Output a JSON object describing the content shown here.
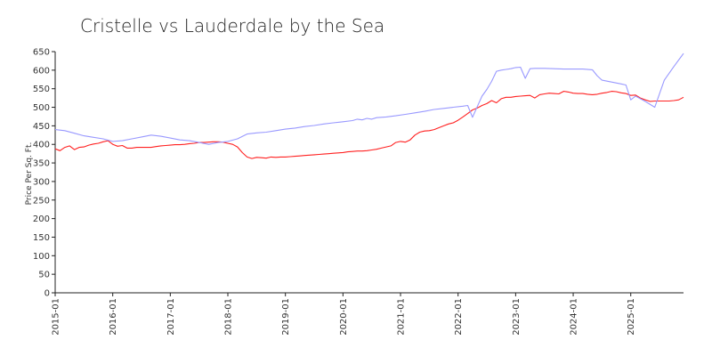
{
  "chart_data": {
    "type": "line",
    "title": "Cristelle vs Lauderdale by the Sea",
    "ylabel": "Price Per Sq. Ft.",
    "xlabel": "",
    "ylim": [
      0,
      650
    ],
    "yticks": [
      0,
      50,
      100,
      150,
      200,
      250,
      300,
      350,
      400,
      450,
      500,
      550,
      600,
      650
    ],
    "xlim": [
      "2015-01",
      "2025-12"
    ],
    "xticks": [
      "2015-01",
      "2016-01",
      "2017-01",
      "2018-01",
      "2019-01",
      "2020-01",
      "2021-01",
      "2022-01",
      "2023-01",
      "2024-01",
      "2025-01"
    ],
    "grid": false,
    "legend": "none",
    "series": [
      {
        "color": "#ff2020",
        "points": [
          [
            "2015-01",
            388
          ],
          [
            "2015-02",
            383
          ],
          [
            "2015-03",
            392
          ],
          [
            "2015-04",
            396
          ],
          [
            "2015-05",
            386
          ],
          [
            "2015-06",
            392
          ],
          [
            "2015-07",
            393
          ],
          [
            "2015-08",
            398
          ],
          [
            "2015-09",
            401
          ],
          [
            "2015-10",
            403
          ],
          [
            "2015-11",
            407
          ],
          [
            "2015-12",
            410
          ],
          [
            "2016-01",
            400
          ],
          [
            "2016-02",
            395
          ],
          [
            "2016-03",
            397
          ],
          [
            "2016-04",
            390
          ],
          [
            "2016-05",
            390
          ],
          [
            "2016-06",
            392
          ],
          [
            "2016-07",
            392
          ],
          [
            "2016-08",
            392
          ],
          [
            "2016-09",
            392
          ],
          [
            "2016-10",
            394
          ],
          [
            "2016-11",
            396
          ],
          [
            "2016-12",
            397
          ],
          [
            "2017-01",
            398
          ],
          [
            "2017-02",
            399
          ],
          [
            "2017-03",
            399
          ],
          [
            "2017-04",
            400
          ],
          [
            "2017-05",
            402
          ],
          [
            "2017-06",
            403
          ],
          [
            "2017-07",
            405
          ],
          [
            "2017-08",
            405
          ],
          [
            "2017-09",
            406
          ],
          [
            "2017-10",
            407
          ],
          [
            "2017-11",
            407
          ],
          [
            "2017-12",
            406
          ],
          [
            "2018-01",
            403
          ],
          [
            "2018-02",
            400
          ],
          [
            "2018-03",
            393
          ],
          [
            "2018-04",
            378
          ],
          [
            "2018-05",
            366
          ],
          [
            "2018-06",
            362
          ],
          [
            "2018-07",
            365
          ],
          [
            "2018-08",
            364
          ],
          [
            "2018-09",
            363
          ],
          [
            "2018-10",
            366
          ],
          [
            "2018-11",
            365
          ],
          [
            "2018-12",
            366
          ],
          [
            "2019-01",
            366
          ],
          [
            "2019-02",
            367
          ],
          [
            "2019-03",
            368
          ],
          [
            "2019-04",
            369
          ],
          [
            "2019-05",
            370
          ],
          [
            "2019-06",
            371
          ],
          [
            "2019-07",
            372
          ],
          [
            "2019-08",
            373
          ],
          [
            "2019-09",
            374
          ],
          [
            "2019-10",
            375
          ],
          [
            "2019-11",
            376
          ],
          [
            "2019-12",
            377
          ],
          [
            "2020-01",
            378
          ],
          [
            "2020-02",
            380
          ],
          [
            "2020-03",
            381
          ],
          [
            "2020-04",
            382
          ],
          [
            "2020-05",
            382
          ],
          [
            "2020-06",
            383
          ],
          [
            "2020-07",
            385
          ],
          [
            "2020-08",
            387
          ],
          [
            "2020-09",
            390
          ],
          [
            "2020-10",
            393
          ],
          [
            "2020-11",
            396
          ],
          [
            "2020-12",
            405
          ],
          [
            "2021-01",
            408
          ],
          [
            "2021-02",
            406
          ],
          [
            "2021-03",
            412
          ],
          [
            "2021-04",
            425
          ],
          [
            "2021-05",
            433
          ],
          [
            "2021-06",
            436
          ],
          [
            "2021-07",
            437
          ],
          [
            "2021-08",
            440
          ],
          [
            "2021-09",
            445
          ],
          [
            "2021-10",
            450
          ],
          [
            "2021-11",
            455
          ],
          [
            "2021-12",
            458
          ],
          [
            "2022-01",
            465
          ],
          [
            "2022-02",
            474
          ],
          [
            "2022-03",
            483
          ],
          [
            "2022-04",
            493
          ],
          [
            "2022-05",
            498
          ],
          [
            "2022-06",
            505
          ],
          [
            "2022-07",
            510
          ],
          [
            "2022-08",
            518
          ],
          [
            "2022-09",
            512
          ],
          [
            "2022-10",
            523
          ],
          [
            "2022-11",
            527
          ],
          [
            "2022-12",
            527
          ],
          [
            "2023-01",
            529
          ],
          [
            "2023-02",
            530
          ],
          [
            "2023-03",
            531
          ],
          [
            "2023-04",
            532
          ],
          [
            "2023-05",
            525
          ],
          [
            "2023-06",
            534
          ],
          [
            "2023-07",
            536
          ],
          [
            "2023-08",
            538
          ],
          [
            "2023-09",
            537
          ],
          [
            "2023-10",
            536
          ],
          [
            "2023-11",
            543
          ],
          [
            "2023-12",
            541
          ],
          [
            "2024-01",
            538
          ],
          [
            "2024-02",
            537
          ],
          [
            "2024-03",
            537
          ],
          [
            "2024-04",
            535
          ],
          [
            "2024-05",
            534
          ],
          [
            "2024-06",
            535
          ],
          [
            "2024-07",
            538
          ],
          [
            "2024-08",
            540
          ],
          [
            "2024-09",
            543
          ],
          [
            "2024-10",
            542
          ],
          [
            "2024-11",
            539
          ],
          [
            "2024-12",
            537
          ],
          [
            "2025-01",
            532
          ],
          [
            "2025-02",
            533
          ],
          [
            "2025-03",
            525
          ],
          [
            "2025-04",
            520
          ],
          [
            "2025-05",
            516
          ],
          [
            "2025-06",
            517
          ],
          [
            "2025-07",
            517
          ],
          [
            "2025-08",
            517
          ],
          [
            "2025-09",
            517
          ],
          [
            "2025-10",
            518
          ],
          [
            "2025-11",
            520
          ],
          [
            "2025-12",
            527
          ]
        ]
      },
      {
        "color": "#9999ff",
        "points": [
          [
            "2015-01",
            440
          ],
          [
            "2015-03",
            437
          ],
          [
            "2015-05",
            430
          ],
          [
            "2015-07",
            423
          ],
          [
            "2015-09",
            419
          ],
          [
            "2015-11",
            415
          ],
          [
            "2016-01",
            408
          ],
          [
            "2016-03",
            410
          ],
          [
            "2016-05",
            415
          ],
          [
            "2016-07",
            420
          ],
          [
            "2016-09",
            425
          ],
          [
            "2016-11",
            422
          ],
          [
            "2017-01",
            417
          ],
          [
            "2017-03",
            412
          ],
          [
            "2017-05",
            410
          ],
          [
            "2017-07",
            405
          ],
          [
            "2017-09",
            400
          ],
          [
            "2017-11",
            405
          ],
          [
            "2018-01",
            408
          ],
          [
            "2018-03",
            415
          ],
          [
            "2018-05",
            428
          ],
          [
            "2018-07",
            431
          ],
          [
            "2018-09",
            433
          ],
          [
            "2018-11",
            437
          ],
          [
            "2019-01",
            441
          ],
          [
            "2019-03",
            444
          ],
          [
            "2019-05",
            448
          ],
          [
            "2019-07",
            451
          ],
          [
            "2019-09",
            455
          ],
          [
            "2019-11",
            458
          ],
          [
            "2020-01",
            461
          ],
          [
            "2020-03",
            464
          ],
          [
            "2020-04",
            468
          ],
          [
            "2020-05",
            466
          ],
          [
            "2020-06",
            470
          ],
          [
            "2020-07",
            468
          ],
          [
            "2020-08",
            472
          ],
          [
            "2020-10",
            474
          ],
          [
            "2020-12",
            477
          ],
          [
            "2021-02",
            481
          ],
          [
            "2021-04",
            485
          ],
          [
            "2021-06",
            489
          ],
          [
            "2021-08",
            494
          ],
          [
            "2021-10",
            497
          ],
          [
            "2021-12",
            500
          ],
          [
            "2022-02",
            503
          ],
          [
            "2022-03",
            505
          ],
          [
            "2022-04",
            473
          ],
          [
            "2022-05",
            502
          ],
          [
            "2022-06",
            530
          ],
          [
            "2022-07",
            548
          ],
          [
            "2022-08",
            570
          ],
          [
            "2022-09",
            597
          ],
          [
            "2022-10",
            600
          ],
          [
            "2022-11",
            602
          ],
          [
            "2022-12",
            604
          ],
          [
            "2023-01",
            607
          ],
          [
            "2023-02",
            608
          ],
          [
            "2023-03",
            578
          ],
          [
            "2023-04",
            604
          ],
          [
            "2023-05",
            605
          ],
          [
            "2023-07",
            605
          ],
          [
            "2023-09",
            604
          ],
          [
            "2023-11",
            603
          ],
          [
            "2024-01",
            603
          ],
          [
            "2024-03",
            603
          ],
          [
            "2024-05",
            601
          ],
          [
            "2024-06",
            585
          ],
          [
            "2024-07",
            573
          ],
          [
            "2024-09",
            568
          ],
          [
            "2024-11",
            563
          ],
          [
            "2024-12",
            560
          ],
          [
            "2025-01",
            520
          ],
          [
            "2025-02",
            530
          ],
          [
            "2025-04",
            516
          ],
          [
            "2025-06",
            500
          ],
          [
            "2025-08",
            573
          ],
          [
            "2025-10",
            610
          ],
          [
            "2025-12",
            645
          ]
        ]
      }
    ]
  }
}
